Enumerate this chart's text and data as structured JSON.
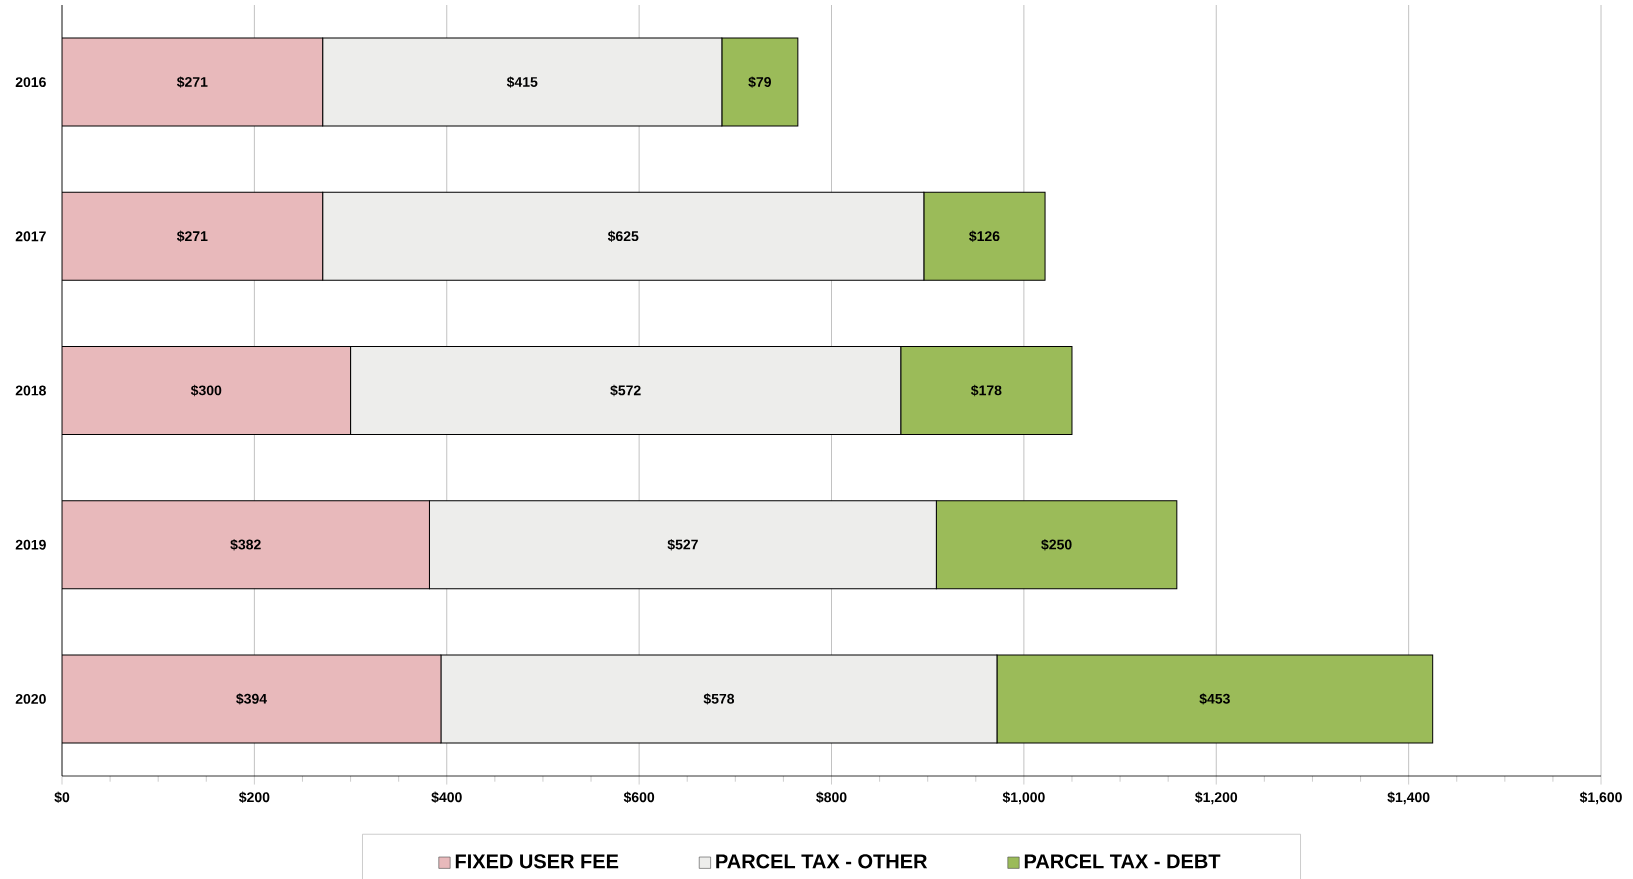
{
  "chart_data": {
    "type": "bar",
    "orientation": "horizontal",
    "stacked": true,
    "categories": [
      "2016",
      "2017",
      "2018",
      "2019",
      "2020"
    ],
    "series": [
      {
        "name": "FIXED USER FEE",
        "color": "#e8b9bb",
        "values": [
          271,
          271,
          300,
          382,
          394
        ],
        "value_labels": [
          "$271",
          "$271",
          "$300",
          "$382",
          "$394"
        ]
      },
      {
        "name": "PARCEL TAX - OTHER",
        "color": "#ededeb",
        "values": [
          415,
          625,
          572,
          527,
          578
        ],
        "value_labels": [
          "$415",
          "$625",
          "$572",
          "$527",
          "$578"
        ]
      },
      {
        "name": "PARCEL TAX - DEBT",
        "color": "#9bbb59",
        "values": [
          79,
          126,
          178,
          250,
          453
        ],
        "value_labels": [
          "$79",
          "$126",
          "$178",
          "$250",
          "$453"
        ]
      }
    ],
    "xlim": [
      0,
      1600
    ],
    "xticks": [
      {
        "value": 0,
        "label": "$0"
      },
      {
        "value": 200,
        "label": "$200"
      },
      {
        "value": 400,
        "label": "$400"
      },
      {
        "value": 600,
        "label": "$600"
      },
      {
        "value": 800,
        "label": "$800"
      },
      {
        "value": 1000,
        "label": "$1,000"
      },
      {
        "value": 1200,
        "label": "$1,200"
      },
      {
        "value": 1400,
        "label": "$1,400"
      },
      {
        "value": 1600,
        "label": "$1,600"
      }
    ],
    "grid": "x",
    "legend": "bottom"
  }
}
